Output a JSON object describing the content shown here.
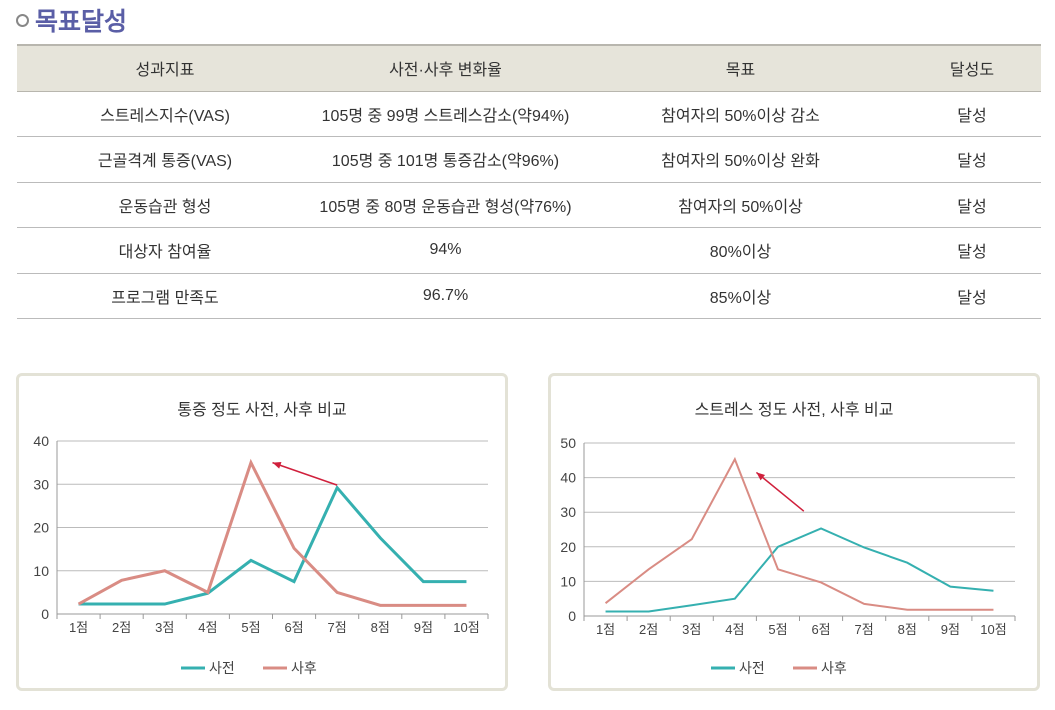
{
  "section_title": "목표달성",
  "table": {
    "headers": [
      "성과지표",
      "사전·사후 변화율",
      "목표",
      "달성도"
    ],
    "rows": [
      [
        "스트레스지수(VAS)",
        "105명 중 99명 스트레스감소(약94%)",
        "참여자의 50%이상 감소",
        "달성"
      ],
      [
        "근골격계 통증(VAS)",
        "105명 중 101명 통증감소(약96%)",
        "참여자의 50%이상 완화",
        "달성"
      ],
      [
        "운동습관 형성",
        "105명 중 80명 운동습관 형성(약76%)",
        "참여자의 50%이상",
        "달성"
      ],
      [
        "대상자 참여율",
        "94%",
        "80%이상",
        "달성"
      ],
      [
        "프로그램 만족도",
        "96.7%",
        "85%이상",
        "달성"
      ]
    ]
  },
  "chart_data": [
    {
      "type": "line",
      "title": "통증 정도 사전, 사후 비교",
      "categories": [
        "1점",
        "2점",
        "3점",
        "4점",
        "5점",
        "6점",
        "7점",
        "8점",
        "9점",
        "10점"
      ],
      "ylim": [
        0,
        40
      ],
      "yticks": [
        0,
        10,
        20,
        30,
        40
      ],
      "grid": true,
      "legend": "bottom",
      "series": [
        {
          "name": "사전",
          "color": "#35b0b0",
          "values": [
            2.3,
            2.3,
            2.3,
            4.8,
            12.4,
            7.5,
            29.2,
            17.6,
            7.5,
            7.5
          ]
        },
        {
          "name": "사후",
          "color": "#d98c84",
          "values": [
            2.3,
            7.8,
            10,
            5,
            35,
            15.2,
            5,
            2,
            2,
            2
          ]
        }
      ],
      "arrow": {
        "from": [
          7,
          29.8
        ],
        "to": [
          5.5,
          35
        ]
      }
    },
    {
      "type": "line",
      "title": "스트레스 정도 사전, 사후 비교",
      "categories": [
        "1점",
        "2점",
        "3점",
        "4점",
        "5점",
        "6점",
        "7점",
        "8점",
        "9점",
        "10점"
      ],
      "ylim": [
        0,
        50
      ],
      "yticks": [
        0,
        10,
        20,
        30,
        40,
        50
      ],
      "grid": true,
      "legend": "bottom",
      "series": [
        {
          "name": "사전",
          "color": "#35b0b0",
          "values": [
            1.3,
            1.3,
            3.1,
            5,
            20,
            25.3,
            19.8,
            15.4,
            8.5,
            7.3
          ]
        },
        {
          "name": "사후",
          "color": "#d98c84",
          "values": [
            3.7,
            13.5,
            22.2,
            45.3,
            13.5,
            9.7,
            3.5,
            1.8,
            1.8,
            1.8
          ]
        }
      ],
      "arrow": {
        "from": [
          5.6,
          30.3
        ],
        "to": [
          4.5,
          41.5
        ]
      }
    }
  ]
}
